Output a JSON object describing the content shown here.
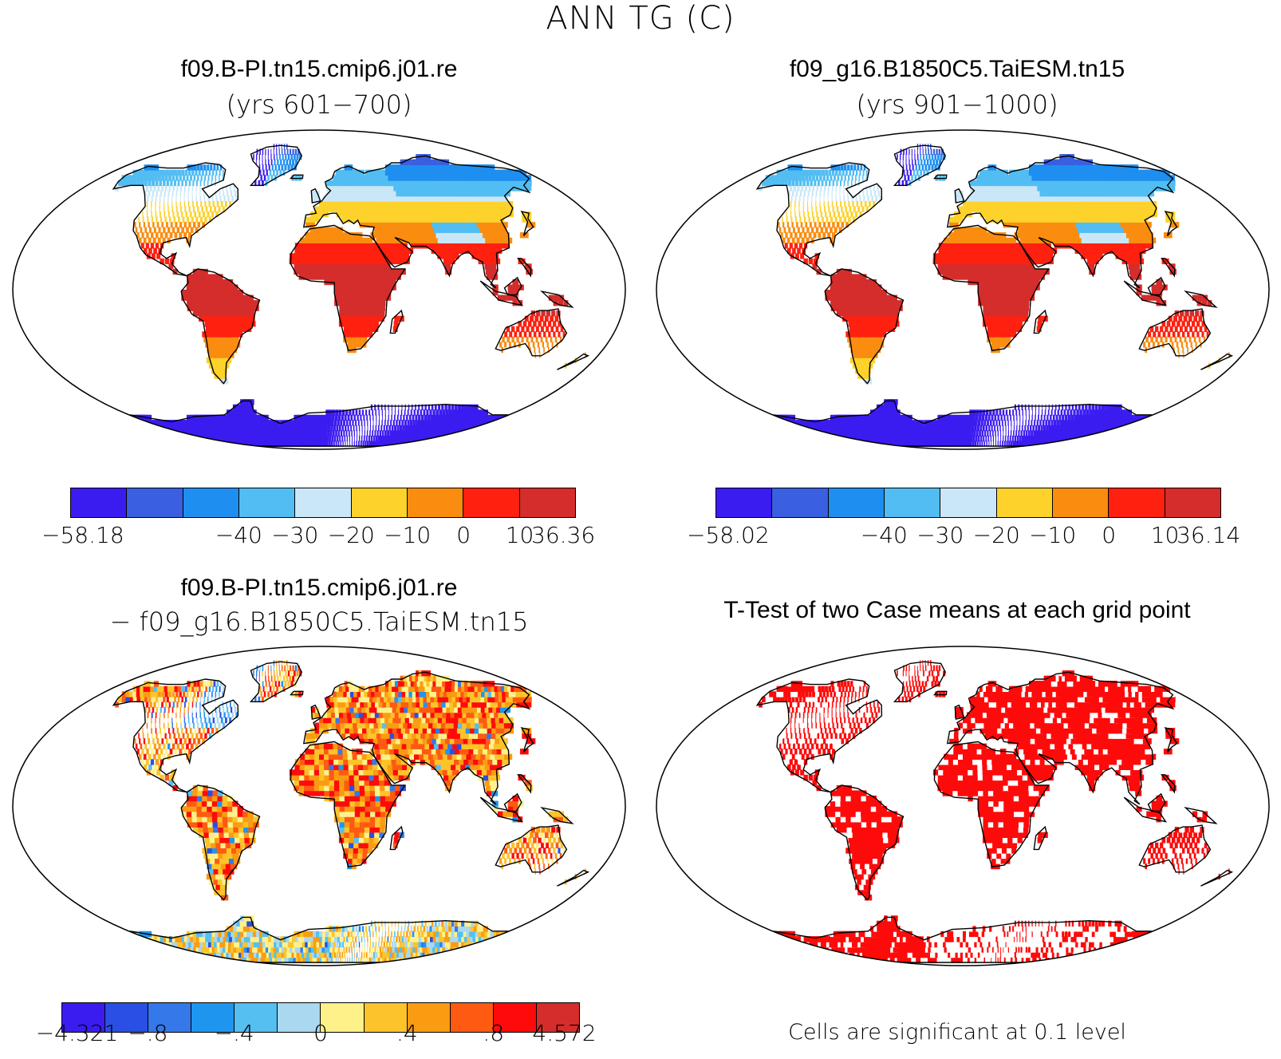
{
  "title": "ANN TG (C)",
  "panels": [
    {
      "title": "f09.B-PI.tn15.cmip6.j01.re",
      "subtitle": "(yrs 601−700)",
      "type": "field",
      "colorbar": {
        "colors": [
          "#3b1cf0",
          "#3a5fe0",
          "#1e8ff0",
          "#52bdf2",
          "#c9e7f7",
          "#fcd22b",
          "#fa8c0f",
          "#ff2010",
          "#d42d2b"
        ],
        "labels": [
          "−58.18",
          "−40",
          "−30",
          "−20",
          "−10",
          "0",
          "10",
          "36.36"
        ]
      }
    },
    {
      "title": "f09_g16.B1850C5.TaiESM.tn15",
      "subtitle": "(yrs 901−1000)",
      "type": "field",
      "colorbar": {
        "colors": [
          "#3b1cf0",
          "#3a5fe0",
          "#1e8ff0",
          "#52bdf2",
          "#c9e7f7",
          "#fcd22b",
          "#fa8c0f",
          "#ff2010",
          "#d42d2b"
        ],
        "labels": [
          "−58.02",
          "−40",
          "−30",
          "−20",
          "−10",
          "0",
          "10",
          "36.14"
        ]
      }
    },
    {
      "title": "f09.B-PI.tn15.cmip6.j01.re",
      "subtitle": "− f09_g16.B1850C5.TaiESM.tn15",
      "type": "difference",
      "colorbar": {
        "colors": [
          "#3b1cf0",
          "#2a4fe4",
          "#3478ea",
          "#1e96f0",
          "#55bff2",
          "#a9d8f0",
          "#fff18a",
          "#fcc42a",
          "#fa9c12",
          "#ff5a12",
          "#ff0a0a",
          "#d42d2b"
        ],
        "labels": [
          "−4.321",
          "−.8",
          "−.4",
          "0",
          ".4",
          ".8",
          "4.572"
        ]
      }
    },
    {
      "title": "T-Test of two Case means at each grid point",
      "subtitle": "",
      "type": "significance",
      "footnote": "Cells are significant at 0.1 level"
    }
  ],
  "colors": {
    "significant": "#ff0a0a",
    "land_outline": "#000000"
  }
}
